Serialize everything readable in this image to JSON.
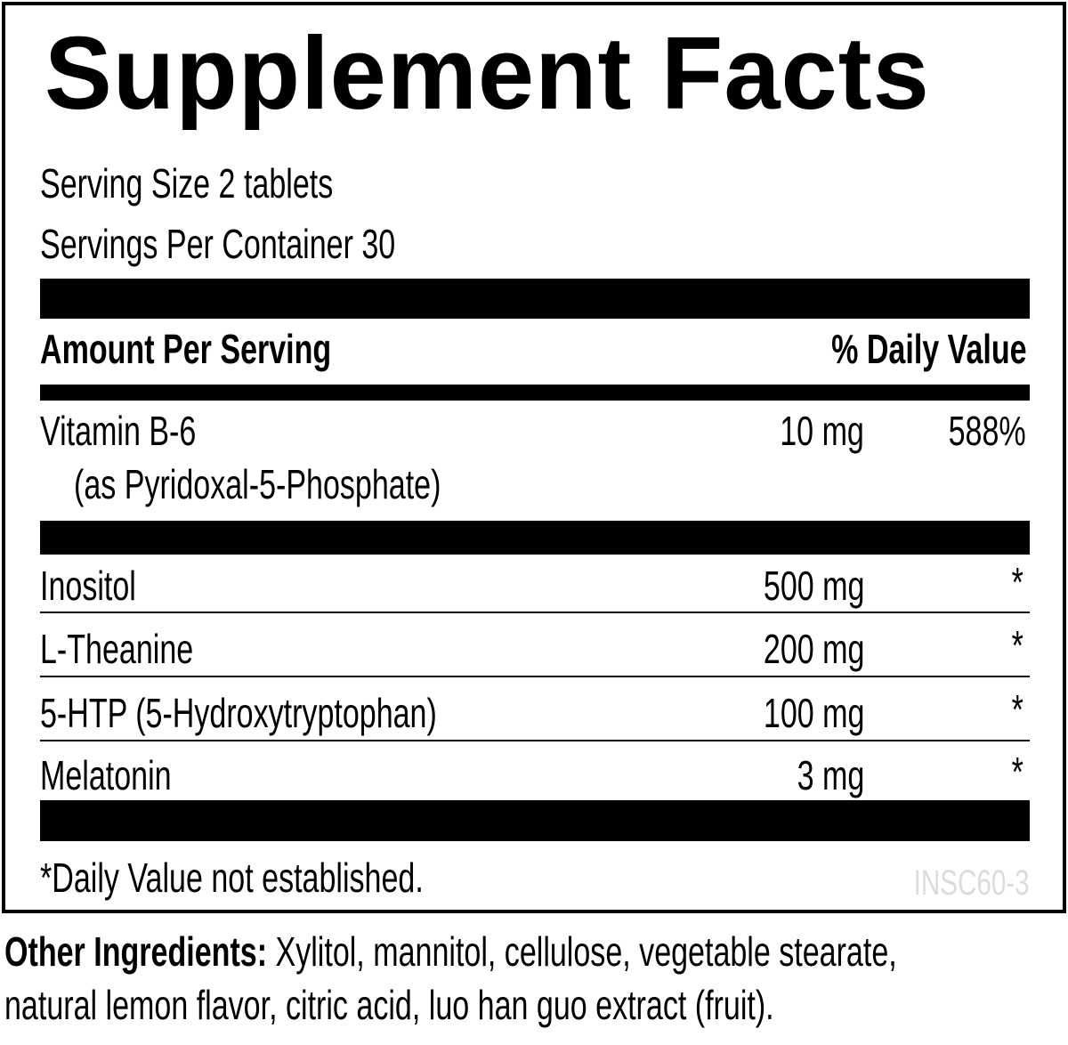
{
  "title": "Supplement Facts",
  "serving_size": "Serving Size 2 tablets",
  "servings_per_container": "Servings Per Container 30",
  "header": {
    "amount": "Amount Per Serving",
    "dv": "% Daily Value"
  },
  "vitamin": {
    "name": "Vitamin B-6",
    "sub": "(as Pyridoxal-5-Phosphate)",
    "amount": "10 mg",
    "dv": "588%"
  },
  "rows": [
    {
      "name": "Inositol",
      "amount": "500 mg",
      "dv": "*"
    },
    {
      "name": "L-Theanine",
      "amount": "200 mg",
      "dv": "*"
    },
    {
      "name": "5-HTP (5-Hydroxytryptophan)",
      "amount": "100 mg",
      "dv": "*"
    },
    {
      "name": "Melatonin",
      "amount": "3 mg",
      "dv": "*"
    }
  ],
  "footnote": "*Daily Value not established.",
  "code": "INSC60-3",
  "other": {
    "label": "Other Ingredients:",
    "line1": " Xylitol, mannitol, cellulose, vegetable stearate,",
    "line2": "natural lemon flavor, citric acid, luo han guo extract (fruit)."
  },
  "colors": {
    "text": "#000000",
    "code": "#dcdcdc"
  }
}
